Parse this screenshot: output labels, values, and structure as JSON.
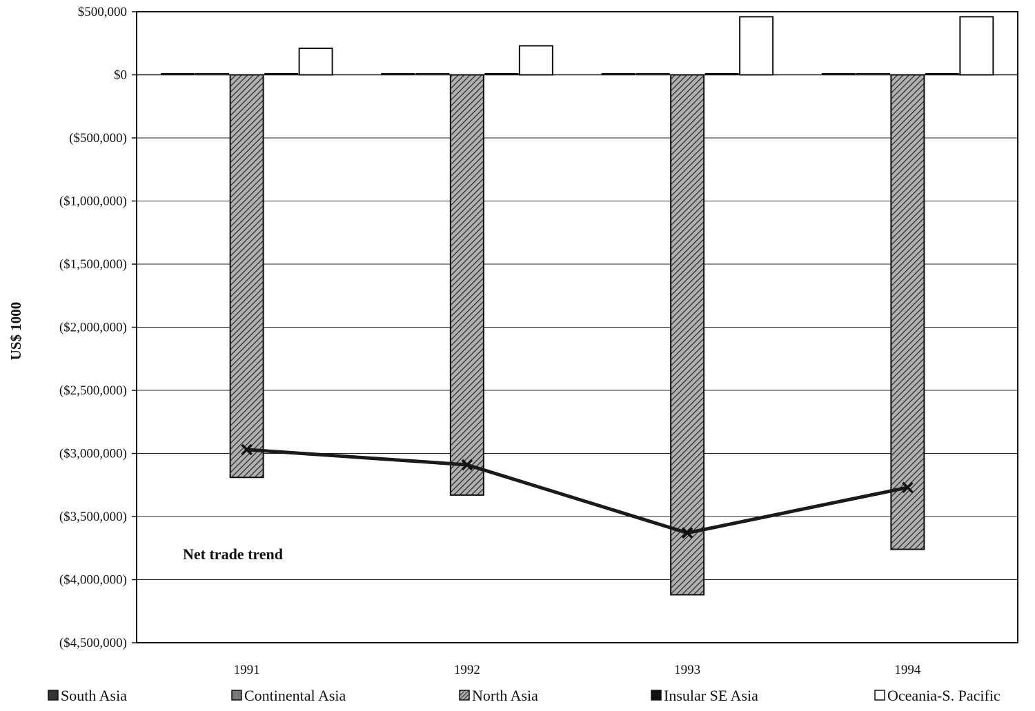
{
  "chart_data": {
    "type": "bar",
    "categories": [
      "1991",
      "1992",
      "1993",
      "1994"
    ],
    "series": [
      {
        "name": "South Asia",
        "values": [
          2000,
          2000,
          2000,
          2000
        ]
      },
      {
        "name": "Continental Asia",
        "values": [
          5000,
          8000,
          10000,
          8000
        ]
      },
      {
        "name": "North Asia",
        "values": [
          -3190000,
          -3330000,
          -4120000,
          -3760000
        ]
      },
      {
        "name": "Insular SE Asia",
        "values": [
          3000,
          3000,
          4000,
          4000
        ]
      },
      {
        "name": "Oceania-S. Pacific",
        "values": [
          210000,
          230000,
          460000,
          460000
        ]
      }
    ],
    "line_series": {
      "name": "Net trade trend",
      "values": [
        -2970000,
        -3090000,
        -3630000,
        -3270000
      ]
    },
    "annotation": "Net trade trend",
    "ylabel": "US$ 1000",
    "ylim": [
      -4500000,
      500000
    ],
    "yticks": [
      500000,
      0,
      -500000,
      -1000000,
      -1500000,
      -2000000,
      -2500000,
      -3000000,
      -3500000,
      -4000000,
      -4500000
    ],
    "ytick_labels": [
      "$500,000",
      "$0",
      "($500,000)",
      "($1,000,000)",
      "($1,500,000)",
      "($2,000,000)",
      "($2,500,000)",
      "($3,000,000)",
      "($3,500,000)",
      "($4,000,000)",
      "($4,500,000)"
    ],
    "grid": true,
    "legend": "bottom",
    "colors": {
      "South Asia": "#333333",
      "Continental Asia": "#555555",
      "North Asia": "#777777",
      "Insular SE Asia": "#111111",
      "Oceania-S. Pacific": "#ffffff",
      "line": "#1a1a1a"
    }
  }
}
